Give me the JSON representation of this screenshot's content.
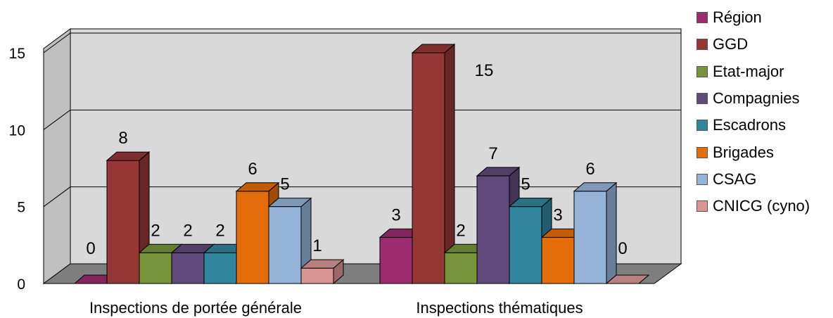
{
  "chart_data": {
    "type": "bar",
    "categories": [
      "Inspections de portée générale",
      "Inspections thématiques"
    ],
    "series": [
      {
        "name": "Région",
        "values": [
          0,
          3
        ],
        "color": "#9b2d6e"
      },
      {
        "name": "GGD",
        "values": [
          8,
          15
        ],
        "color": "#953735"
      },
      {
        "name": "Etat-major",
        "values": [
          2,
          2
        ],
        "color": "#77933c"
      },
      {
        "name": "Compagnies",
        "values": [
          2,
          7
        ],
        "color": "#604a7b"
      },
      {
        "name": "Escadrons",
        "values": [
          2,
          5
        ],
        "color": "#31859c"
      },
      {
        "name": "Brigades",
        "values": [
          6,
          3
        ],
        "color": "#e46c0a"
      },
      {
        "name": "CSAG",
        "values": [
          5,
          6
        ],
        "color": "#95b3d7"
      },
      {
        "name": "CNICG (cyno)",
        "values": [
          1,
          0
        ],
        "color": "#d99694"
      }
    ],
    "yticks": [
      0,
      5,
      10,
      15
    ],
    "ylim": [
      0,
      15
    ],
    "grid": true,
    "legend": "right",
    "wall_color": "#d9d9d9",
    "floor_color": "#7f7f7f",
    "style": "3d clustered columns"
  }
}
